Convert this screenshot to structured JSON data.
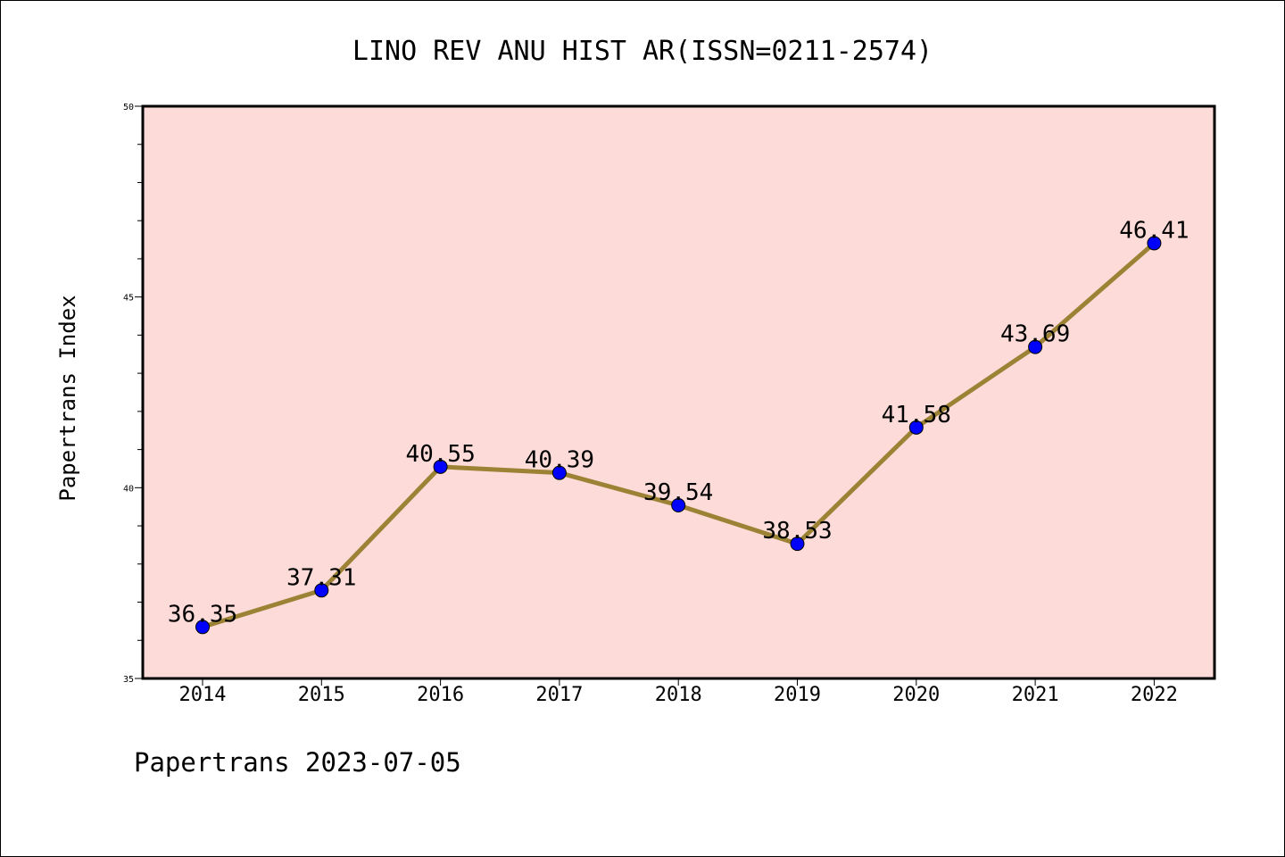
{
  "chart_data": {
    "type": "line",
    "title": "LINO REV ANU HIST AR(ISSN=0211-2574)",
    "ylabel": "Papertrans Index",
    "xlabel": "",
    "categories": [
      "2014",
      "2015",
      "2016",
      "2017",
      "2018",
      "2019",
      "2020",
      "2021",
      "2022"
    ],
    "series": [
      {
        "values": [
          36.35,
          37.31,
          40.55,
          40.39,
          39.54,
          38.53,
          41.58,
          43.69,
          46.41
        ],
        "data_labels": [
          "36.35",
          "37.31",
          "40.55",
          "40.39",
          "39.54",
          "38.53",
          "41.58",
          "43.69",
          "46.41"
        ]
      }
    ],
    "ylim": [
      35,
      50
    ],
    "yticks": [
      "35",
      "40",
      "45",
      "50"
    ],
    "grid": false,
    "colors": {
      "plot_background": "#fddbd8",
      "line": "#9b8235",
      "marker": "#0000ff"
    }
  },
  "footer": {
    "source_text": "Papertrans 2023-07-05"
  }
}
